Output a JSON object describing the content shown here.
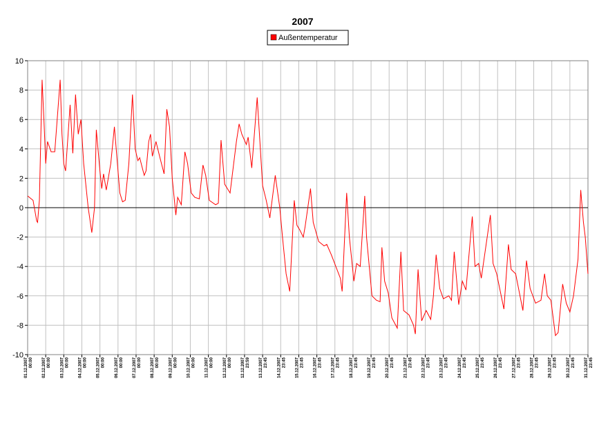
{
  "chart_data": {
    "type": "line",
    "title": "2007",
    "x": [
      0,
      0.3,
      0.5,
      0.55,
      0.65,
      0.8,
      0.9,
      1.0,
      1.1,
      1.3,
      1.5,
      1.8,
      1.9,
      2.0,
      2.1,
      2.35,
      2.5,
      2.65,
      2.8,
      2.95,
      3.1,
      3.35,
      3.55,
      3.7,
      3.8,
      4.0,
      4.1,
      4.2,
      4.35,
      4.6,
      4.8,
      4.9,
      5.1,
      5.25,
      5.4,
      5.6,
      5.8,
      5.95,
      6.1,
      6.2,
      6.45,
      6.55,
      6.7,
      6.8,
      6.9,
      7.1,
      7.3,
      7.55,
      7.7,
      7.85,
      8.0,
      8.2,
      8.3,
      8.5,
      8.7,
      8.85,
      9.05,
      9.25,
      9.5,
      9.7,
      9.85,
      10.05,
      10.4,
      10.55,
      10.7,
      10.9,
      11.2,
      11.4,
      11.55,
      11.7,
      11.85,
      12.1,
      12.2,
      12.4,
      12.7,
      12.85,
      13.0,
      13.2,
      13.4,
      13.7,
      13.95,
      14.1,
      14.3,
      14.5,
      14.75,
      14.9,
      15.05,
      15.25,
      15.35,
      15.65,
      15.8,
      16.1,
      16.4,
      16.55,
      16.8,
      17.3,
      17.4,
      17.65,
      17.8,
      18.05,
      18.2,
      18.4,
      18.65,
      18.75,
      19.05,
      19.3,
      19.5,
      19.6,
      19.75,
      19.95,
      20.15,
      20.45,
      20.65,
      20.8,
      21.1,
      21.35,
      21.45,
      21.6,
      21.8,
      22.05,
      22.3,
      22.45,
      22.6,
      22.8,
      23.0,
      23.3,
      23.45,
      23.6,
      23.85,
      24.05,
      24.25,
      24.6,
      24.75,
      24.95,
      25.1,
      25.25,
      25.6,
      25.75,
      25.95,
      26.35,
      26.6,
      26.75,
      27.0,
      27.4,
      27.6,
      27.8,
      28.1,
      28.4,
      28.6,
      28.75,
      28.95,
      29.2,
      29.35,
      29.6,
      29.8,
      30.0,
      30.2,
      30.45,
      30.6,
      30.75,
      30.85,
      31.0
    ],
    "series": [
      {
        "name": "Außentemperatur",
        "color": "#ff0000",
        "values": [
          0.8,
          0.5,
          -0.9,
          -1,
          0.5,
          8.7,
          6,
          3,
          4.5,
          3.8,
          3.8,
          8.7,
          5,
          3,
          2.5,
          7,
          3.7,
          7.7,
          5,
          6,
          3,
          0,
          -1.7,
          0,
          5.3,
          2.5,
          1.3,
          2.3,
          1.2,
          3,
          5.5,
          4,
          1,
          0.4,
          0.5,
          3,
          7.7,
          4,
          3.2,
          3.4,
          2.2,
          2.5,
          4.5,
          5,
          3.5,
          4.5,
          3.5,
          2.3,
          6.7,
          5.5,
          2,
          -0.5,
          0.7,
          0.2,
          3.8,
          3,
          1,
          0.7,
          0.6,
          2.9,
          2.2,
          0.5,
          0.2,
          0.3,
          4.6,
          1.6,
          1,
          3,
          4.5,
          5.7,
          5,
          4.3,
          4.8,
          2.7,
          7.5,
          4.5,
          1.5,
          0.5,
          -0.7,
          2.2,
          0,
          -2,
          -4.5,
          -5.7,
          0.5,
          -1.2,
          -1.5,
          -2,
          -1.3,
          1.3,
          -1,
          -2.3,
          -2.6,
          -2.5,
          -3.2,
          -4.8,
          -5.7,
          1,
          -2,
          -5,
          -3.8,
          -4,
          0.8,
          -2,
          -6,
          -6.3,
          -6.4,
          -2.7,
          -5,
          -5.8,
          -7.5,
          -8.2,
          -3,
          -7,
          -7.3,
          -8,
          -8.6,
          -4.2,
          -7.7,
          -7,
          -7.6,
          -6,
          -3.2,
          -5.5,
          -6.2,
          -6,
          -6.3,
          -3,
          -6.6,
          -5,
          -5.6,
          -0.6,
          -4,
          -3.8,
          -4.8,
          -3.5,
          -0.5,
          -3.8,
          -4.5,
          -6.9,
          -2.5,
          -4.2,
          -4.5,
          -7,
          -3.6,
          -5.5,
          -6.5,
          -6.3,
          -4.5,
          -6,
          -6.3,
          -8.7,
          -8.5,
          -5.2,
          -6.5,
          -7.1,
          -6,
          -3.5,
          1.2,
          -1,
          -2,
          -4.5
        ]
      }
    ],
    "xlim": [
      0,
      31
    ],
    "xticks": [
      {
        "value": 0,
        "label": [
          "01.12.2007",
          "00:00"
        ]
      },
      {
        "value": 1,
        "label": [
          "02.12.2007",
          "00:00"
        ]
      },
      {
        "value": 2,
        "label": [
          "03.12.2007",
          "00:00"
        ]
      },
      {
        "value": 3,
        "label": [
          "04.12.2007",
          "00:00"
        ]
      },
      {
        "value": 4,
        "label": [
          "05.12.2007",
          "00:00"
        ]
      },
      {
        "value": 5,
        "label": [
          "06.12.2007",
          "00:00"
        ]
      },
      {
        "value": 6,
        "label": [
          "07.12.2007",
          "00:00"
        ]
      },
      {
        "value": 7,
        "label": [
          "08.12.2007",
          "00:00"
        ]
      },
      {
        "value": 8,
        "label": [
          "09.12.2007",
          "00:00"
        ]
      },
      {
        "value": 9,
        "label": [
          "10.12.2007",
          "00:00"
        ]
      },
      {
        "value": 10,
        "label": [
          "11.12.2007",
          "00:00"
        ]
      },
      {
        "value": 11,
        "label": [
          "12.12.2007",
          "00:00"
        ]
      },
      {
        "value": 12,
        "label": [
          "12.12.2007",
          "23:59"
        ]
      },
      {
        "value": 13,
        "label": [
          "13.12.2007",
          "23:45"
        ]
      },
      {
        "value": 14,
        "label": [
          "14.12.2007",
          "23:45"
        ]
      },
      {
        "value": 15,
        "label": [
          "15.12.2007",
          "23:45"
        ]
      },
      {
        "value": 16,
        "label": [
          "16.12.2007",
          "23:45"
        ]
      },
      {
        "value": 17,
        "label": [
          "17.12.2007",
          "23:45"
        ]
      },
      {
        "value": 18,
        "label": [
          "18.12.2007",
          "23:45"
        ]
      },
      {
        "value": 19,
        "label": [
          "19.12.2007",
          "23:45"
        ]
      },
      {
        "value": 20,
        "label": [
          "20.12.2007",
          "23:45"
        ]
      },
      {
        "value": 21,
        "label": [
          "21.12.2007",
          "23:45"
        ]
      },
      {
        "value": 22,
        "label": [
          "22.12.2007",
          "23:45"
        ]
      },
      {
        "value": 23,
        "label": [
          "23.12.2007",
          "23:45"
        ]
      },
      {
        "value": 24,
        "label": [
          "24.12.2007",
          "23:45"
        ]
      },
      {
        "value": 25,
        "label": [
          "25.12.2007",
          "23:45"
        ]
      },
      {
        "value": 26,
        "label": [
          "26.12.2007",
          "23:45"
        ]
      },
      {
        "value": 27,
        "label": [
          "27.12.2007",
          "23:45"
        ]
      },
      {
        "value": 28,
        "label": [
          "28.12.2007",
          "23:45"
        ]
      },
      {
        "value": 29,
        "label": [
          "29.12.2007",
          "23:45"
        ]
      },
      {
        "value": 30,
        "label": [
          "30.12.2007",
          "23:45"
        ]
      },
      {
        "value": 31,
        "label": [
          "31.12.2007",
          "23:45"
        ]
      }
    ],
    "ylim": [
      -10,
      10
    ],
    "yticks": [
      -10,
      -8,
      -6,
      -4,
      -2,
      0,
      2,
      4,
      6,
      8,
      10
    ],
    "grid": true,
    "legend": "top"
  }
}
